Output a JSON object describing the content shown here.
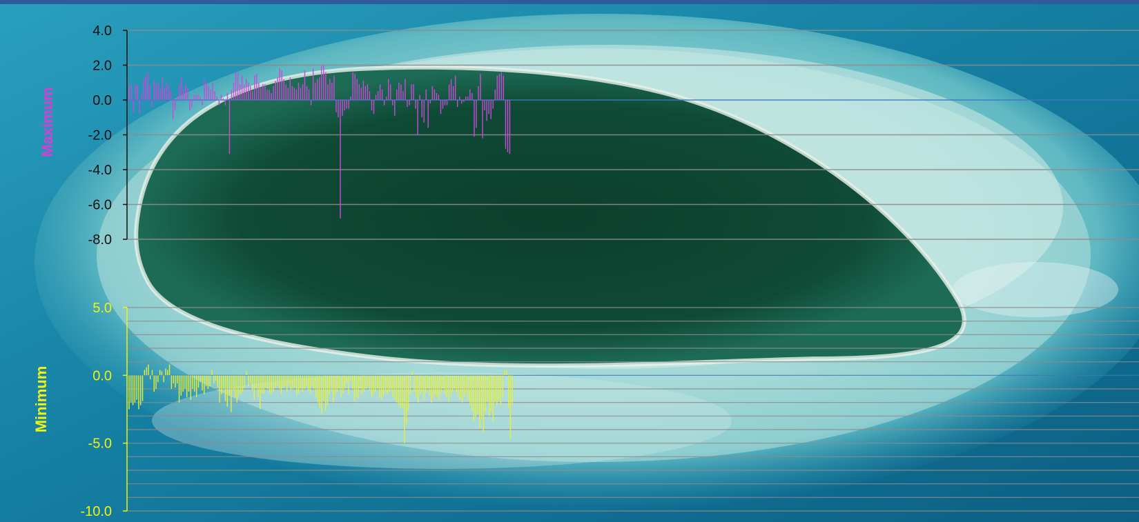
{
  "colors": {
    "max_series": "#c84bd8",
    "min_series": "#e6f03a",
    "max_ticks": "#111111",
    "min_ticks": "#f2f214",
    "gridline": "#8c8c8c",
    "zero_line": "#3d78c0",
    "top_band": "#2e5a9e"
  },
  "chart_data": [
    {
      "type": "bar",
      "ylabel": "Maximum",
      "ylim": [
        -8.0,
        4.0
      ],
      "y_ticks": [
        "4.0",
        "2.0",
        "0.0",
        "-2.0",
        "-4.0",
        "-6.0",
        "-8.0"
      ],
      "y_tick_values": [
        4,
        2,
        0,
        -2,
        -4,
        -6,
        -8
      ],
      "grid": true,
      "values": [
        0.8,
        0.9,
        -0.7,
        0.9,
        0.9,
        -0.8,
        0.3,
        1.2,
        1.4,
        1.6,
        0.8,
        -0.4,
        1.1,
        0.9,
        1.0,
        0.6,
        1.3,
        0.7,
        1.0,
        0.8,
        0.5,
        -1.1,
        -0.6,
        0.2,
        0.9,
        1.3,
        0.6,
        0.9,
        0.7,
        -0.6,
        -0.4,
        0.3,
        0.3,
        0.3,
        0.2,
        -0.3,
        1.2,
        1.0,
        0.8,
        0.6,
        1.0,
        0.5,
        0.2,
        -0.3,
        0.3,
        0.1,
        -0.3,
        0.4,
        -3.1,
        0.6,
        1.0,
        1.6,
        1.6,
        0.9,
        1.4,
        0.9,
        1.2,
        1.0,
        0.8,
        0.5,
        1.4,
        1.5,
        1.0,
        0.7,
        0.9,
        0.9,
        0.6,
        0.6,
        0.4,
        0.8,
        1.1,
        1.3,
        1.8,
        1.7,
        1.2,
        0.9,
        0.7,
        1.3,
        0.8,
        0.7,
        0.6,
        1.0,
        0.7,
        0.9,
        1.7,
        0.8,
        0.6,
        -0.3,
        1.8,
        1.0,
        1.2,
        1.3,
        2.0,
        2.0,
        1.6,
        0.9,
        1.2,
        1.0,
        1.4,
        -0.7,
        -1.0,
        -6.8,
        -0.9,
        -0.6,
        -0.5,
        -0.5,
        0.2,
        1.6,
        1.5,
        1.2,
        0.9,
        0.7,
        1.1,
        0.8,
        0.9,
        0.5,
        -0.6,
        -0.8,
        0.3,
        0.5,
        0.9,
        0.6,
        -0.3,
        0.2,
        1.2,
        0.9,
        -0.3,
        -0.9,
        0.6,
        1.0,
        0.9,
        0.5,
        1.2,
        -0.4,
        -0.3,
        0.9,
        0.9,
        -0.5,
        -2.0,
        0.3,
        -1.0,
        -1.3,
        0.6,
        -1.6,
        -0.2,
        0.8,
        0.6,
        0.4,
        0.3,
        -0.8,
        -0.5,
        -0.3,
        -0.3,
        0.9,
        1.2,
        0.8,
        1.4,
        -0.4,
        0.2,
        -0.2,
        -0.1,
        0.2,
        0.2,
        0.6,
        0.4,
        -2.1,
        -1.6,
        0.8,
        1.5,
        -2.2,
        -0.6,
        -1.2,
        -0.8,
        -1.1,
        -0.5,
        0.6,
        1.4,
        1.5,
        1.6,
        1.4,
        -2.8,
        -3.0,
        -3.1
      ]
    },
    {
      "type": "bar",
      "ylabel": "Minimum",
      "ylim": [
        -10.0,
        5.0
      ],
      "y_ticks": [
        "5.0",
        "0.0",
        "-5.0",
        "-10.0"
      ],
      "y_tick_values": [
        5,
        0,
        -5,
        -10
      ],
      "grid": true,
      "values": [
        -2.5,
        -2.0,
        -2.2,
        -2.0,
        -1.8,
        -2.5,
        -2.2,
        -1.9,
        0.4,
        0.6,
        0.8,
        -0.3,
        0.4,
        -1.2,
        -1.0,
        -0.5,
        0.4,
        0.3,
        -0.5,
        0.5,
        0.4,
        0.8,
        -1.0,
        -0.6,
        -0.9,
        -0.6,
        -2.0,
        -1.5,
        -1.2,
        -1.0,
        -1.6,
        -1.2,
        -1.8,
        -1.0,
        -1.2,
        -1.6,
        -0.9,
        -0.5,
        -1.1,
        -1.4,
        -0.8,
        -1.0,
        -0.8,
        0.4,
        -0.6,
        -0.4,
        -0.9,
        -2.0,
        -1.4,
        -1.0,
        -1.9,
        -2.3,
        -1.5,
        -2.7,
        -1.1,
        -1.6,
        -2.0,
        -1.5,
        -1.4,
        -1.2,
        -0.9,
        0.3,
        -0.8,
        -0.6,
        -1.1,
        -1.8,
        -1.0,
        -1.6,
        -2.5,
        -1.3,
        -1.4,
        -0.9,
        -1.0,
        -1.3,
        -1.4,
        -1.2,
        -0.9,
        -0.8,
        -1.0,
        -1.4,
        -0.9,
        -0.8,
        -1.2,
        -0.7,
        -1.1,
        -1.0,
        -0.9,
        -1.5,
        -1.3,
        -1.0,
        -1.2,
        -1.0,
        -0.8,
        -1.1,
        -1.3,
        -0.8,
        -1.0,
        -1.6,
        -2.0,
        -2.4,
        -2.8,
        -1.8,
        -2.6,
        -2.2,
        -1.4,
        -1.1,
        -2.0,
        -1.5,
        -1.2,
        -1.0,
        -1.6,
        -1.3,
        -1.0,
        -0.6,
        -1.4,
        -0.4,
        -1.0,
        -1.9,
        -1.6,
        -1.7,
        -1.0,
        -1.4,
        -1.2,
        -1.0,
        -0.8,
        -1.1,
        -1.6,
        -1.4,
        -1.2,
        -1.0,
        -1.6,
        -1.8,
        -1.5,
        -1.3,
        -1.4,
        -1.2,
        -1.1,
        -1.6,
        -1.8,
        -2.0,
        -2.2,
        -2.5,
        -2.4,
        -5.0,
        -3.6,
        -2.6,
        -1.4,
        0.3,
        -1.2,
        -1.6,
        -2.0,
        -1.4,
        -1.2,
        -1.8,
        -1.3,
        -1.0,
        -1.5,
        -2.0,
        -1.7,
        -1.5,
        -1.6,
        -1.8,
        -1.3,
        -1.0,
        -1.4,
        -1.6,
        -1.9,
        -1.5,
        -1.2,
        -1.0,
        -1.3,
        -1.6,
        -1.8,
        -2.0,
        -1.6,
        -1.3,
        -1.8,
        -2.2,
        -2.6,
        -3.4,
        -3.1,
        -2.8,
        -3.9,
        -3.2,
        -4.2,
        -2.7,
        -2.0,
        -3.0,
        -2.6,
        -3.4,
        -2.0,
        -2.2,
        -1.8,
        -2.3,
        -1.6,
        0.4,
        0.4,
        -2.4,
        -4.7,
        -2.2
      ]
    }
  ]
}
